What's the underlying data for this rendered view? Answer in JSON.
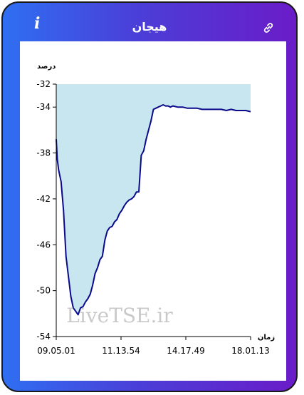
{
  "header": {
    "title": "هیجان",
    "info_glyph": "i",
    "info_icon": "info-icon",
    "link_icon": "link-icon"
  },
  "colors": {
    "line": "#0a0a8a",
    "fill": "#c8e6f0",
    "frame_start": "#2f6ff2",
    "frame_end": "#6a1cc8"
  },
  "watermark": "LiveTSE.ir",
  "chart_data": {
    "type": "area",
    "title": "",
    "ylabel": "درصد",
    "xlabel": "زمان",
    "ylim": [
      -54,
      -32
    ],
    "yticks": [
      -32,
      -34,
      -38,
      -42,
      -46,
      -50,
      -54
    ],
    "xticks": [
      "09.05.01",
      "11.13.54",
      "14.17.49",
      "18.01.13"
    ],
    "x": [
      0,
      0.2,
      0.5,
      1,
      1.5,
      2,
      3,
      3.5,
      4,
      4.5,
      5,
      5.5,
      6,
      6.5,
      7,
      7.5,
      8,
      8.5,
      9,
      9.5,
      10,
      10.5,
      11,
      11.5,
      12,
      12.5,
      13,
      13.5,
      14,
      14.5,
      15,
      15.5,
      16,
      16.5,
      17,
      17.5,
      18,
      18.5,
      19,
      19.5,
      20,
      20.5,
      21,
      21.5,
      22,
      22.5,
      23,
      23.5,
      24,
      25,
      26,
      27,
      28,
      29,
      30,
      31,
      32,
      33,
      34,
      35,
      36,
      37,
      38,
      39,
      40
    ],
    "y": [
      -36.8,
      -38.5,
      -39.5,
      -40.5,
      -43,
      -47,
      -50.5,
      -51.5,
      -51.8,
      -52.1,
      -51.5,
      -51.4,
      -51,
      -50.7,
      -50.3,
      -49.5,
      -48.5,
      -48,
      -47.3,
      -47,
      -45.6,
      -44.8,
      -44.5,
      -44.4,
      -44,
      -43.8,
      -43.3,
      -43,
      -42.6,
      -42.3,
      -42.1,
      -42,
      -41.8,
      -41.4,
      -41.4,
      -38.2,
      -37.8,
      -36.8,
      -36,
      -35.2,
      -34.2,
      -34.1,
      -34.0,
      -33.9,
      -33.8,
      -33.9,
      -33.9,
      -34.0,
      -33.9,
      -34.0,
      -34.0,
      -34.1,
      -34.1,
      -34.1,
      -34.2,
      -34.2,
      -34.2,
      -34.2,
      -34.2,
      -34.3,
      -34.2,
      -34.3,
      -34.3,
      -34.3,
      -34.4
    ],
    "xlim": [
      0,
      40
    ]
  }
}
